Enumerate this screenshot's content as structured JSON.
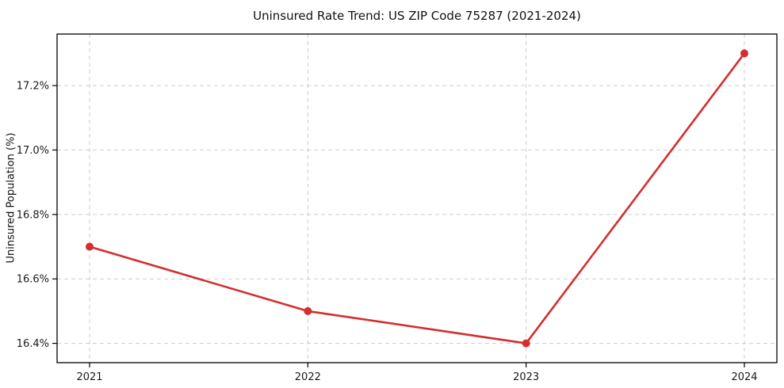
{
  "chart_data": {
    "type": "line",
    "title": "Uninsured Rate Trend: US ZIP Code 75287 (2021-2024)",
    "xlabel": "",
    "ylabel": "Uninsured Population (%)",
    "categories": [
      "2021",
      "2022",
      "2023",
      "2024"
    ],
    "series": [
      {
        "values": [
          16.7,
          16.5,
          16.4,
          17.3
        ],
        "color": "#d32f2f",
        "marker": "circle"
      }
    ],
    "y_ticks": [
      16.4,
      16.6,
      16.8,
      17.0,
      17.2
    ],
    "y_tick_labels": [
      "16.4%",
      "16.6%",
      "16.8%",
      "17.0%",
      "17.2%"
    ],
    "ylim": [
      16.34,
      17.36
    ],
    "grid": true,
    "grid_style": "dashed",
    "grid_color": "#cccccc",
    "axis_color": "#000000",
    "text_color": "#1a1a1a",
    "background_color": "#ffffff",
    "legend": "none"
  }
}
